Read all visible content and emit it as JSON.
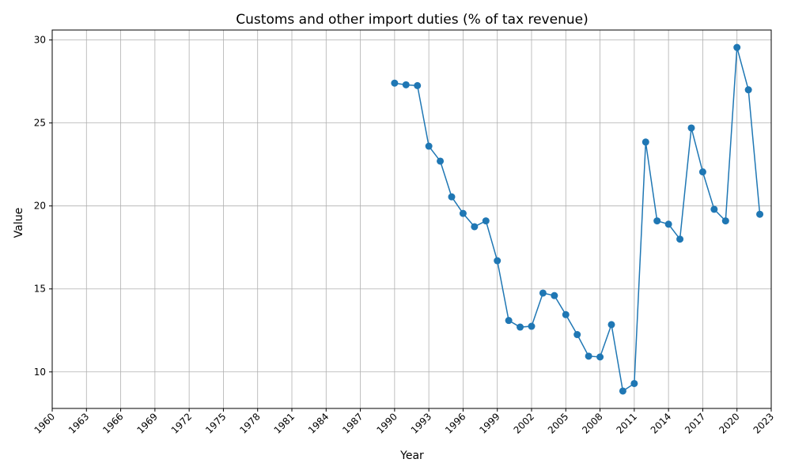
{
  "chart_data": {
    "type": "line",
    "title": "Customs and other import duties (% of tax revenue)",
    "xlabel": "Year",
    "ylabel": "Value",
    "xlim": [
      1960,
      2023
    ],
    "ylim": [
      7.8,
      30.6
    ],
    "grid": true,
    "line_color": "#1f77b4",
    "x_ticks": [
      1960,
      1963,
      1966,
      1969,
      1972,
      1975,
      1978,
      1981,
      1984,
      1987,
      1990,
      1993,
      1996,
      1999,
      2002,
      2005,
      2008,
      2011,
      2014,
      2017,
      2020,
      2023
    ],
    "y_ticks": [
      10,
      15,
      20,
      25,
      30
    ],
    "x": [
      1990,
      1991,
      1992,
      1993,
      1994,
      1995,
      1996,
      1997,
      1998,
      1999,
      2000,
      2001,
      2002,
      2003,
      2004,
      2005,
      2006,
      2007,
      2008,
      2009,
      2010,
      2011,
      2012,
      2013,
      2014,
      2015,
      2016,
      2017,
      2018,
      2019,
      2020,
      2021,
      2022
    ],
    "values": [
      27.4,
      27.3,
      27.25,
      23.6,
      22.7,
      20.55,
      19.55,
      18.75,
      19.1,
      16.7,
      13.1,
      12.7,
      12.75,
      14.75,
      14.6,
      13.45,
      12.25,
      10.95,
      10.9,
      12.85,
      8.85,
      9.3,
      23.85,
      19.1,
      18.9,
      18.0,
      24.7,
      22.05,
      19.8,
      19.1,
      29.55,
      27.0,
      19.5
    ]
  }
}
